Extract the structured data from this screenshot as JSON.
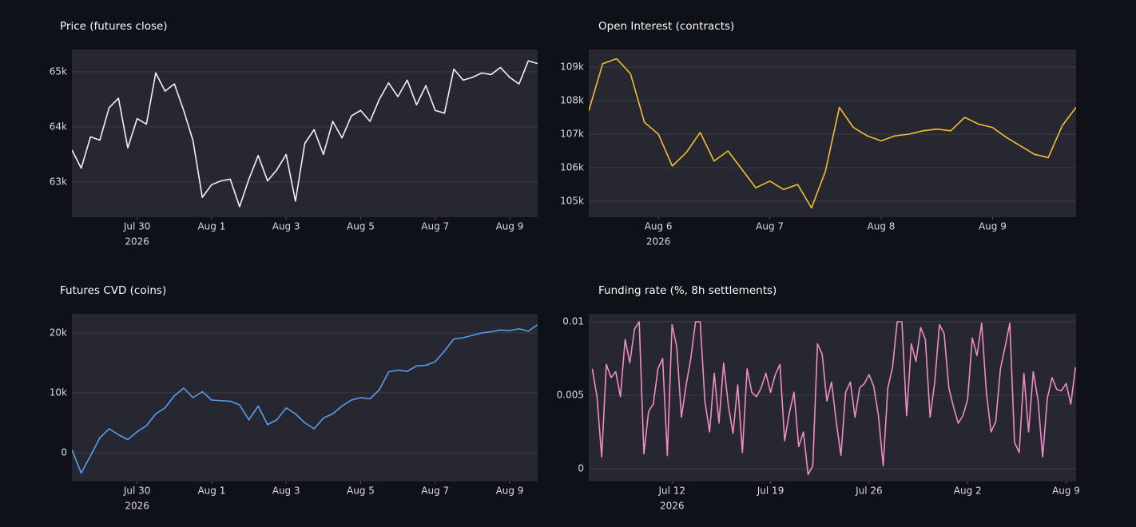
{
  "chart_data": [
    {
      "type": "line",
      "title": "Price (futures close)",
      "color": "#f0f2f6",
      "x": [
        "2026-07-28T06:00",
        "2026-07-28T12:00",
        "2026-07-28T18:00",
        "2026-07-29T00:00",
        "2026-07-29T06:00",
        "2026-07-29T12:00",
        "2026-07-29T18:00",
        "2026-07-30T00:00",
        "2026-07-30T06:00",
        "2026-07-30T12:00",
        "2026-07-30T18:00",
        "2026-07-31T00:00",
        "2026-07-31T06:00",
        "2026-07-31T12:00",
        "2026-07-31T18:00",
        "2026-08-01T00:00",
        "2026-08-01T06:00",
        "2026-08-01T12:00",
        "2026-08-01T18:00",
        "2026-08-02T00:00",
        "2026-08-02T06:00",
        "2026-08-02T12:00",
        "2026-08-02T18:00",
        "2026-08-03T00:00",
        "2026-08-03T06:00",
        "2026-08-03T12:00",
        "2026-08-03T18:00",
        "2026-08-04T00:00",
        "2026-08-04T06:00",
        "2026-08-04T12:00",
        "2026-08-04T18:00",
        "2026-08-05T00:00",
        "2026-08-05T06:00",
        "2026-08-05T12:00",
        "2026-08-05T18:00",
        "2026-08-06T00:00",
        "2026-08-06T06:00",
        "2026-08-06T12:00",
        "2026-08-06T18:00",
        "2026-08-07T00:00",
        "2026-08-07T06:00",
        "2026-08-07T12:00",
        "2026-08-07T18:00",
        "2026-08-08T00:00",
        "2026-08-08T06:00",
        "2026-08-08T12:00",
        "2026-08-08T18:00",
        "2026-08-09T00:00",
        "2026-08-09T06:00",
        "2026-08-09T12:00",
        "2026-08-09T18:00"
      ],
      "values": [
        63580,
        63250,
        63820,
        63760,
        64350,
        64520,
        63620,
        64150,
        64050,
        64980,
        64650,
        64780,
        64300,
        63750,
        62720,
        62950,
        63020,
        63050,
        62550,
        63050,
        63480,
        63020,
        63220,
        63500,
        62650,
        63700,
        63950,
        63500,
        64100,
        63800,
        64200,
        64300,
        64100,
        64500,
        64800,
        64550,
        64850,
        64400,
        64750,
        64300,
        64250,
        65050,
        64850,
        64900,
        64980,
        64950,
        65080,
        64900,
        64780,
        65200,
        65150
      ],
      "xlim": [
        "2026-07-28T06:00",
        "2026-08-09T18:00"
      ],
      "xticks": [
        {
          "value": "2026-07-30T00:00",
          "label": "Jul 30"
        },
        {
          "value": "2026-08-01T00:00",
          "label": "Aug 1"
        },
        {
          "value": "2026-08-03T00:00",
          "label": "Aug 3"
        },
        {
          "value": "2026-08-05T00:00",
          "label": "Aug 5"
        },
        {
          "value": "2026-08-07T00:00",
          "label": "Aug 7"
        },
        {
          "value": "2026-08-09T00:00",
          "label": "Aug 9"
        }
      ],
      "x_year_label": "2026",
      "ylim": [
        62360,
        65406
      ],
      "yticks": [
        {
          "value": 63000,
          "label": "63k"
        },
        {
          "value": 64000,
          "label": "64k"
        },
        {
          "value": 65000,
          "label": "65k"
        }
      ],
      "grid": true
    },
    {
      "type": "line",
      "title": "Open Interest (contracts)",
      "color": "#f6bd33",
      "x": [
        "2026-08-05T09:00",
        "2026-08-05T12:00",
        "2026-08-05T15:00",
        "2026-08-05T18:00",
        "2026-08-05T21:00",
        "2026-08-06T00:00",
        "2026-08-06T03:00",
        "2026-08-06T06:00",
        "2026-08-06T09:00",
        "2026-08-06T12:00",
        "2026-08-06T15:00",
        "2026-08-06T18:00",
        "2026-08-06T21:00",
        "2026-08-07T00:00",
        "2026-08-07T03:00",
        "2026-08-07T06:00",
        "2026-08-07T09:00",
        "2026-08-07T12:00",
        "2026-08-07T15:00",
        "2026-08-07T18:00",
        "2026-08-07T21:00",
        "2026-08-08T00:00",
        "2026-08-08T03:00",
        "2026-08-08T06:00",
        "2026-08-08T09:00",
        "2026-08-08T12:00",
        "2026-08-08T15:00",
        "2026-08-08T18:00",
        "2026-08-08T21:00",
        "2026-08-09T00:00",
        "2026-08-09T03:00",
        "2026-08-09T06:00",
        "2026-08-09T09:00",
        "2026-08-09T12:00",
        "2026-08-09T15:00",
        "2026-08-09T18:00"
      ],
      "values": [
        107700,
        109100,
        109250,
        108800,
        107350,
        107000,
        106050,
        106450,
        107050,
        106200,
        106500,
        105950,
        105400,
        105600,
        105350,
        105500,
        104800,
        105900,
        107800,
        107200,
        106950,
        106800,
        106950,
        107000,
        107100,
        107150,
        107100,
        107500,
        107300,
        107200,
        106900,
        106650,
        106400,
        106300,
        107250,
        107800
      ],
      "xlim": [
        "2026-08-05T09:00",
        "2026-08-09T18:00"
      ],
      "xticks": [
        {
          "value": "2026-08-06T00:00",
          "label": "Aug 6"
        },
        {
          "value": "2026-08-07T00:00",
          "label": "Aug 7"
        },
        {
          "value": "2026-08-08T00:00",
          "label": "Aug 8"
        },
        {
          "value": "2026-08-09T00:00",
          "label": "Aug 9"
        }
      ],
      "x_year_label": "2026",
      "ylim": [
        104524,
        109524
      ],
      "yticks": [
        {
          "value": 105000,
          "label": "105k"
        },
        {
          "value": 106000,
          "label": "106k"
        },
        {
          "value": 107000,
          "label": "107k"
        },
        {
          "value": 108000,
          "label": "108k"
        },
        {
          "value": 109000,
          "label": "109k"
        }
      ],
      "grid": true
    },
    {
      "type": "line",
      "title": "Futures CVD (coins)",
      "color": "#5c9ded",
      "x": [
        "2026-07-28T06:00",
        "2026-07-28T12:00",
        "2026-07-28T18:00",
        "2026-07-29T00:00",
        "2026-07-29T06:00",
        "2026-07-29T12:00",
        "2026-07-29T18:00",
        "2026-07-30T00:00",
        "2026-07-30T06:00",
        "2026-07-30T12:00",
        "2026-07-30T18:00",
        "2026-07-31T00:00",
        "2026-07-31T06:00",
        "2026-07-31T12:00",
        "2026-07-31T18:00",
        "2026-08-01T00:00",
        "2026-08-01T06:00",
        "2026-08-01T12:00",
        "2026-08-01T18:00",
        "2026-08-02T00:00",
        "2026-08-02T06:00",
        "2026-08-02T12:00",
        "2026-08-02T18:00",
        "2026-08-03T00:00",
        "2026-08-03T06:00",
        "2026-08-03T12:00",
        "2026-08-03T18:00",
        "2026-08-04T00:00",
        "2026-08-04T06:00",
        "2026-08-04T12:00",
        "2026-08-04T18:00",
        "2026-08-05T00:00",
        "2026-08-05T06:00",
        "2026-08-05T12:00",
        "2026-08-05T18:00",
        "2026-08-06T00:00",
        "2026-08-06T06:00",
        "2026-08-06T12:00",
        "2026-08-06T18:00",
        "2026-08-07T00:00",
        "2026-08-07T06:00",
        "2026-08-07T12:00",
        "2026-08-07T18:00",
        "2026-08-08T00:00",
        "2026-08-08T06:00",
        "2026-08-08T12:00",
        "2026-08-08T18:00",
        "2026-08-09T00:00",
        "2026-08-09T06:00",
        "2026-08-09T12:00",
        "2026-08-09T18:00"
      ],
      "values": [
        500,
        -3400,
        -500,
        2500,
        4000,
        3000,
        2200,
        3500,
        4500,
        6500,
        7500,
        9500,
        10800,
        9200,
        10200,
        8800,
        8700,
        8600,
        8000,
        5500,
        7800,
        4700,
        5500,
        7500,
        6500,
        5000,
        4000,
        5800,
        6500,
        7800,
        8800,
        9200,
        9000,
        10500,
        13500,
        13800,
        13600,
        14500,
        14600,
        15200,
        17000,
        19000,
        19200,
        19600,
        20000,
        20200,
        20500,
        20400,
        20700,
        20300,
        21400
      ],
      "xlim": [
        "2026-07-28T06:00",
        "2026-08-09T18:00"
      ],
      "xticks": [
        {
          "value": "2026-07-30T00:00",
          "label": "Jul 30"
        },
        {
          "value": "2026-08-01T00:00",
          "label": "Aug 1"
        },
        {
          "value": "2026-08-03T00:00",
          "label": "Aug 3"
        },
        {
          "value": "2026-08-05T00:00",
          "label": "Aug 5"
        },
        {
          "value": "2026-08-07T00:00",
          "label": "Aug 7"
        },
        {
          "value": "2026-08-09T00:00",
          "label": "Aug 9"
        }
      ],
      "x_year_label": "2026",
      "ylim": [
        -4800,
        23200
      ],
      "yticks": [
        0,
        {
          "value": 10000,
          "label": "10k"
        },
        {
          "value": 20000,
          "label": "20k"
        }
      ],
      "grid": true
    },
    {
      "type": "line",
      "title": "Funding rate (%, 8h settlements)",
      "color": "#f08cc4",
      "x": [
        "2026-07-06T08:00",
        "2026-07-06T16:00",
        "2026-07-07T00:00",
        "2026-07-07T08:00",
        "2026-07-07T16:00",
        "2026-07-08T00:00",
        "2026-07-08T08:00",
        "2026-07-08T16:00",
        "2026-07-09T00:00",
        "2026-07-09T08:00",
        "2026-07-09T16:00",
        "2026-07-10T00:00",
        "2026-07-10T08:00",
        "2026-07-10T16:00",
        "2026-07-11T00:00",
        "2026-07-11T08:00",
        "2026-07-11T16:00",
        "2026-07-12T00:00",
        "2026-07-12T08:00",
        "2026-07-12T16:00",
        "2026-07-13T00:00",
        "2026-07-13T08:00",
        "2026-07-13T16:00",
        "2026-07-14T00:00",
        "2026-07-14T08:00",
        "2026-07-14T16:00",
        "2026-07-15T00:00",
        "2026-07-15T08:00",
        "2026-07-15T16:00",
        "2026-07-16T00:00",
        "2026-07-16T08:00",
        "2026-07-16T16:00",
        "2026-07-17T00:00",
        "2026-07-17T08:00",
        "2026-07-17T16:00",
        "2026-07-18T00:00",
        "2026-07-18T08:00",
        "2026-07-18T16:00",
        "2026-07-19T00:00",
        "2026-07-19T08:00",
        "2026-07-19T16:00",
        "2026-07-20T00:00",
        "2026-07-20T08:00",
        "2026-07-20T16:00",
        "2026-07-21T00:00",
        "2026-07-21T08:00",
        "2026-07-21T16:00",
        "2026-07-22T00:00",
        "2026-07-22T08:00",
        "2026-07-22T16:00",
        "2026-07-23T00:00",
        "2026-07-23T08:00",
        "2026-07-23T16:00",
        "2026-07-24T00:00",
        "2026-07-24T08:00",
        "2026-07-24T16:00",
        "2026-07-25T00:00",
        "2026-07-25T08:00",
        "2026-07-25T16:00",
        "2026-07-26T00:00",
        "2026-07-26T08:00",
        "2026-07-26T16:00",
        "2026-07-27T00:00",
        "2026-07-27T08:00",
        "2026-07-27T16:00",
        "2026-07-28T00:00",
        "2026-07-28T08:00",
        "2026-07-28T16:00",
        "2026-07-29T00:00",
        "2026-07-29T08:00",
        "2026-07-29T16:00",
        "2026-07-30T00:00",
        "2026-07-30T08:00",
        "2026-07-30T16:00",
        "2026-07-31T00:00",
        "2026-07-31T08:00",
        "2026-07-31T16:00",
        "2026-08-01T00:00",
        "2026-08-01T08:00",
        "2026-08-01T16:00",
        "2026-08-02T00:00",
        "2026-08-02T08:00",
        "2026-08-02T16:00",
        "2026-08-03T00:00",
        "2026-08-03T08:00",
        "2026-08-03T16:00",
        "2026-08-04T00:00",
        "2026-08-04T08:00",
        "2026-08-04T16:00",
        "2026-08-05T00:00",
        "2026-08-05T08:00",
        "2026-08-05T16:00",
        "2026-08-06T00:00",
        "2026-08-06T08:00",
        "2026-08-06T16:00",
        "2026-08-07T00:00",
        "2026-08-07T08:00",
        "2026-08-07T16:00",
        "2026-08-08T00:00",
        "2026-08-08T08:00",
        "2026-08-08T16:00",
        "2026-08-09T00:00",
        "2026-08-09T08:00",
        "2026-08-09T16:00"
      ],
      "values": [
        0.0068,
        0.0049,
        0.0008,
        0.0071,
        0.0062,
        0.0066,
        0.0049,
        0.0088,
        0.0072,
        0.0095,
        0.01,
        0.001,
        0.0039,
        0.0044,
        0.0068,
        0.0075,
        0.0009,
        0.0098,
        0.0083,
        0.0035,
        0.0057,
        0.0075,
        0.01,
        0.01,
        0.0046,
        0.0025,
        0.0065,
        0.0031,
        0.0072,
        0.0043,
        0.0024,
        0.0057,
        0.0011,
        0.0068,
        0.0052,
        0.0049,
        0.0055,
        0.0065,
        0.0052,
        0.0064,
        0.0071,
        0.0019,
        0.0038,
        0.0052,
        0.0015,
        0.0025,
        -0.0004,
        0.0002,
        0.0085,
        0.0078,
        0.0046,
        0.0059,
        0.0032,
        0.0009,
        0.0052,
        0.0059,
        0.0035,
        0.0055,
        0.0058,
        0.0064,
        0.0056,
        0.0036,
        0.0002,
        0.0055,
        0.0069,
        0.01,
        0.01,
        0.0036,
        0.0085,
        0.0073,
        0.0096,
        0.0088,
        0.0035,
        0.0059,
        0.0098,
        0.0092,
        0.0055,
        0.0042,
        0.0031,
        0.0036,
        0.0047,
        0.0089,
        0.0077,
        0.0099,
        0.0052,
        0.0025,
        0.0032,
        0.0068,
        0.0083,
        0.0099,
        0.0018,
        0.0011,
        0.0065,
        0.0025,
        0.0066,
        0.0047,
        0.0008,
        0.0048,
        0.0062,
        0.0054,
        0.0053,
        0.0058,
        0.0044,
        0.0069
      ],
      "xlim": [
        "2026-07-06T02:00",
        "2026-08-09T17:00"
      ],
      "xticks": [
        {
          "value": "2026-07-12T00:00",
          "label": "Jul 12"
        },
        {
          "value": "2026-07-19T00:00",
          "label": "Jul 19"
        },
        {
          "value": "2026-07-26T00:00",
          "label": "Jul 26"
        },
        {
          "value": "2026-08-02T00:00",
          "label": "Aug 2"
        },
        {
          "value": "2026-08-09T00:00",
          "label": "Aug 9"
        }
      ],
      "x_year_label": "2026",
      "ylim": [
        -0.00087,
        0.010543
      ],
      "yticks": [
        0,
        0.005,
        0.01
      ],
      "grid": true
    }
  ]
}
